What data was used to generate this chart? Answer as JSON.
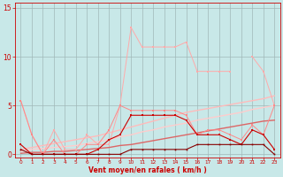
{
  "x": [
    0,
    1,
    2,
    3,
    4,
    5,
    6,
    7,
    8,
    9,
    10,
    11,
    12,
    13,
    14,
    15,
    16,
    17,
    18,
    19,
    20,
    21,
    22,
    23
  ],
  "line_rafales_light": [
    5.5,
    2.0,
    0.0,
    2.5,
    0.5,
    0.5,
    2.0,
    1.0,
    1.0,
    5.0,
    13.0,
    11.0,
    11.0,
    11.0,
    11.0,
    11.5,
    8.5,
    8.5,
    8.5,
    8.5,
    null,
    10.0,
    8.5,
    5.0
  ],
  "line_medium_pink": [
    5.5,
    2.0,
    0.0,
    1.5,
    0.0,
    0.0,
    1.0,
    1.0,
    2.5,
    5.0,
    4.5,
    4.5,
    4.5,
    4.5,
    4.5,
    4.0,
    2.0,
    2.5,
    2.5,
    2.0,
    1.5,
    3.0,
    2.0,
    5.0
  ],
  "line_dark_spiky": [
    1.0,
    0.0,
    0.0,
    0.0,
    0.0,
    0.0,
    0.0,
    0.5,
    1.5,
    2.0,
    4.0,
    4.0,
    4.0,
    4.0,
    4.0,
    3.5,
    2.0,
    2.0,
    2.0,
    1.5,
    1.0,
    2.5,
    2.0,
    0.5
  ],
  "line_near_zero": [
    0.5,
    0.0,
    0.0,
    0.0,
    0.0,
    0.0,
    0.0,
    0.0,
    0.0,
    0.0,
    0.5,
    0.5,
    0.5,
    0.5,
    0.5,
    0.5,
    1.0,
    1.0,
    1.0,
    1.0,
    1.0,
    1.0,
    1.0,
    0.0
  ],
  "trend_top": [
    0.5,
    0.7,
    0.9,
    1.1,
    1.3,
    1.5,
    1.7,
    1.9,
    2.2,
    2.5,
    2.8,
    3.1,
    3.4,
    3.7,
    4.0,
    4.3,
    4.5,
    4.7,
    4.9,
    5.1,
    5.3,
    5.5,
    5.7,
    6.0
  ],
  "trend_mid": [
    0.3,
    0.5,
    0.6,
    0.7,
    0.8,
    0.9,
    1.1,
    1.3,
    1.5,
    1.8,
    2.0,
    2.3,
    2.5,
    2.8,
    3.0,
    3.2,
    3.5,
    3.7,
    3.9,
    4.1,
    4.3,
    4.6,
    4.8,
    5.0
  ],
  "trend_low": [
    0.1,
    0.2,
    0.2,
    0.3,
    0.3,
    0.4,
    0.5,
    0.6,
    0.7,
    0.9,
    1.0,
    1.2,
    1.4,
    1.6,
    1.8,
    2.0,
    2.2,
    2.4,
    2.6,
    2.8,
    3.0,
    3.2,
    3.4,
    3.5
  ],
  "bg_color": "#c8e8e8",
  "grid_color": "#a0b8b8",
  "xlabel": "Vent moyen/en rafales ( km/h )",
  "ylim": [
    0,
    15
  ],
  "xlim": [
    0,
    23
  ],
  "yticks": [
    0,
    5,
    10,
    15
  ],
  "color_light_pink": "#ffaaaa",
  "color_med_pink": "#ff8888",
  "color_dark_red": "#cc0000",
  "color_deep_red": "#880000",
  "color_trend_top": "#ffbbbb",
  "color_trend_mid": "#ffcccc",
  "color_trend_low": "#dd6666"
}
